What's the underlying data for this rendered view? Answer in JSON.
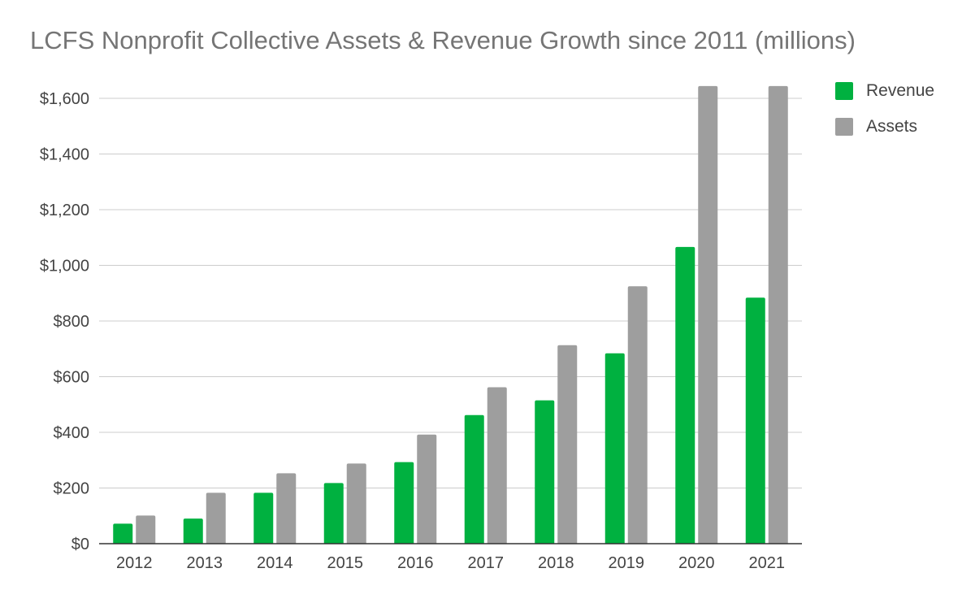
{
  "chart_data": {
    "type": "bar",
    "title": "LCFS Nonprofit Collective Assets & Revenue Growth since 2011 (millions)",
    "xlabel": "",
    "ylabel": "",
    "categories": [
      "2012",
      "2013",
      "2014",
      "2015",
      "2016",
      "2017",
      "2018",
      "2019",
      "2020",
      "2021"
    ],
    "series": [
      {
        "name": "Revenue",
        "color": "#00b140",
        "values": [
          72,
          90,
          183,
          218,
          293,
          462,
          515,
          684,
          1066,
          884
        ]
      },
      {
        "name": "Assets",
        "color": "#9e9e9e",
        "values": [
          101,
          183,
          253,
          288,
          392,
          562,
          713,
          925,
          1644,
          1644
        ]
      }
    ],
    "ylim": [
      0,
      1600
    ],
    "yticks": [
      0,
      200,
      400,
      600,
      800,
      1000,
      1200,
      1400,
      1600
    ],
    "ytick_labels": [
      "$0",
      "$200",
      "$400",
      "$600",
      "$800",
      "$1,000",
      "$1,200",
      "$1,400",
      "$1,600"
    ],
    "grid": true,
    "legend_position": "top-right"
  }
}
